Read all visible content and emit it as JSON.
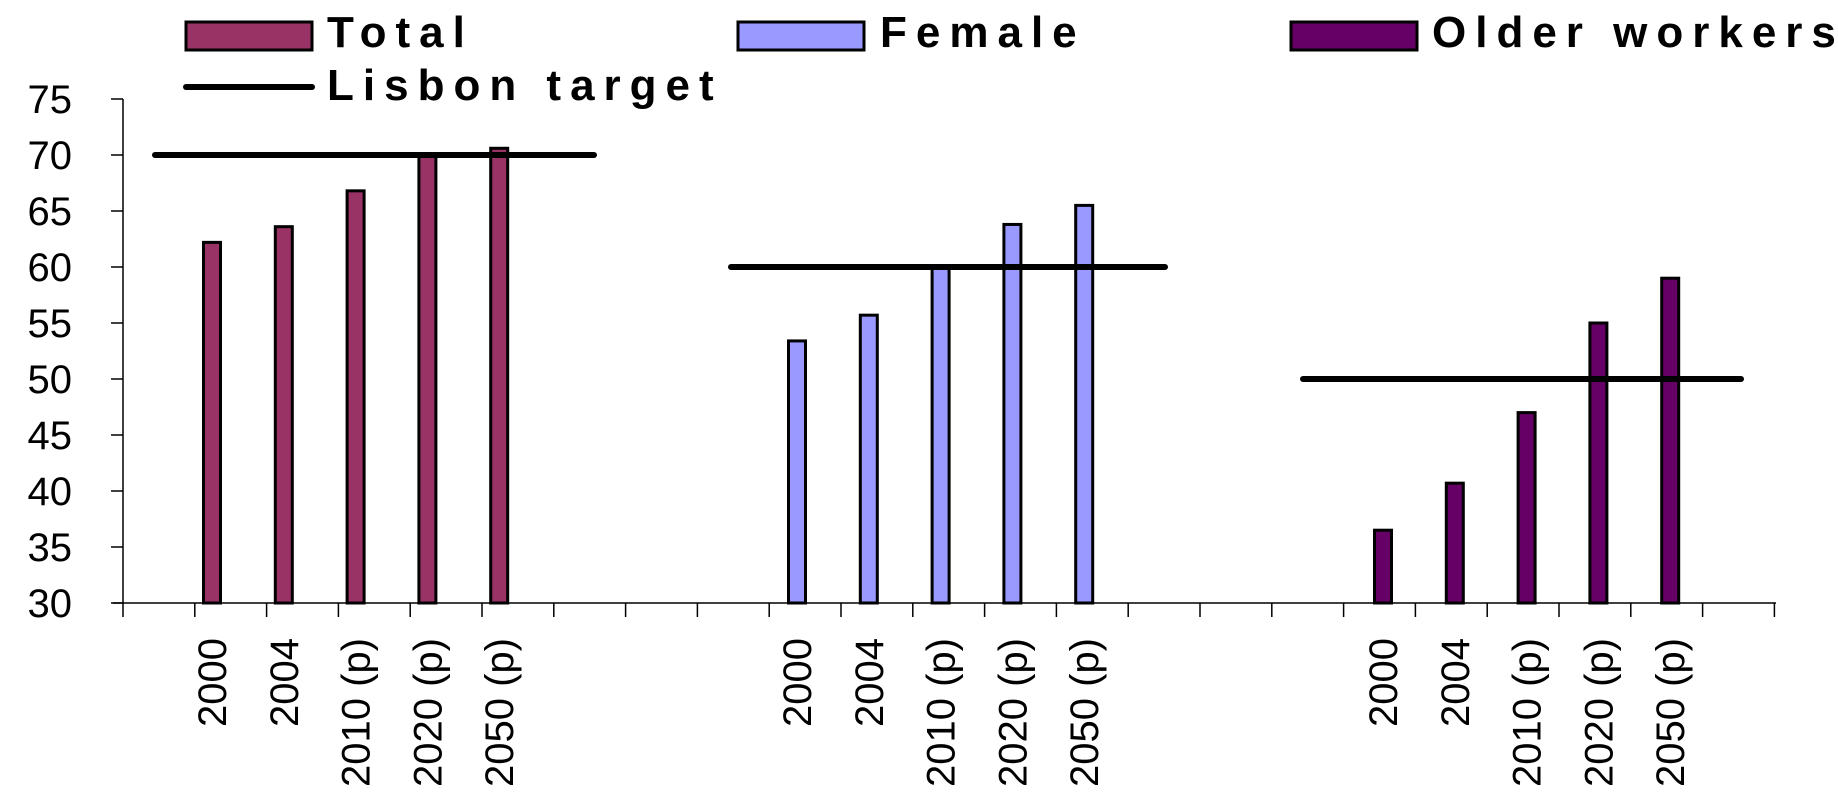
{
  "chart_data": {
    "type": "bar",
    "groups": [
      "Total",
      "Female",
      "Older workers"
    ],
    "categories": [
      "2000",
      "2004",
      "2010 (p)",
      "2020 (p)",
      "2050 (p)"
    ],
    "series": [
      {
        "name": "Total",
        "color": "#993366",
        "values": [
          62.2,
          63.6,
          66.8,
          70.0,
          70.6
        ]
      },
      {
        "name": "Female",
        "color": "#9999ff",
        "values": [
          53.4,
          55.7,
          60.0,
          63.8,
          65.5
        ]
      },
      {
        "name": "Older workers",
        "color": "#660066",
        "values": [
          36.5,
          40.7,
          47.0,
          55.0,
          59.0
        ]
      }
    ],
    "lisbon_target": {
      "name": "Lisbon target",
      "color": "#000000",
      "values": [
        70,
        60,
        50
      ]
    },
    "ylim": [
      30,
      75
    ],
    "yticks": [
      30,
      35,
      40,
      45,
      50,
      55,
      60,
      65,
      70,
      75
    ],
    "legend_position": "top"
  }
}
